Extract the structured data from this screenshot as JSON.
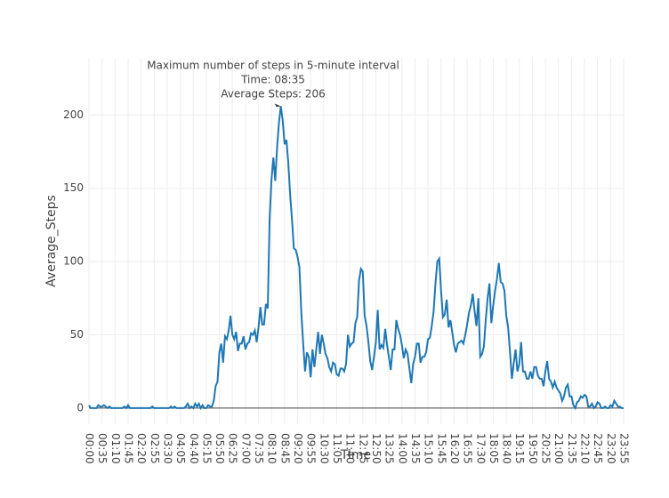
{
  "chart_data": {
    "type": "line",
    "annotation": [
      "Maximum number of steps in 5-minute interval",
      "Time: 08:35",
      "Average Steps: 206"
    ],
    "x_label": "Time",
    "y_label": "Average_Steps",
    "categories": [
      "00:00",
      null,
      null,
      null,
      null,
      null,
      null,
      "00:35",
      null,
      null,
      null,
      null,
      null,
      null,
      "01:10",
      null,
      null,
      null,
      null,
      null,
      null,
      "01:45",
      null,
      null,
      null,
      null,
      null,
      null,
      "02:20",
      null,
      null,
      null,
      null,
      null,
      null,
      "02:55",
      null,
      null,
      null,
      null,
      null,
      null,
      "03:30",
      null,
      null,
      null,
      null,
      null,
      null,
      "04:05",
      null,
      null,
      null,
      null,
      null,
      null,
      "04:40",
      null,
      null,
      null,
      null,
      null,
      null,
      "05:15",
      null,
      null,
      null,
      null,
      null,
      null,
      "05:50",
      null,
      null,
      null,
      null,
      null,
      null,
      "06:25",
      null,
      null,
      null,
      null,
      null,
      null,
      "07:00",
      null,
      null,
      null,
      null,
      null,
      null,
      "07:35",
      null,
      null,
      null,
      null,
      null,
      null,
      "08:10",
      null,
      null,
      null,
      null,
      null,
      null,
      "08:45",
      null,
      null,
      null,
      null,
      null,
      null,
      "09:20",
      null,
      null,
      null,
      null,
      null,
      null,
      "09:55",
      null,
      null,
      null,
      null,
      null,
      null,
      "10:30",
      null,
      null,
      null,
      null,
      null,
      null,
      "11:05",
      null,
      null,
      null,
      null,
      null,
      null,
      "11:40",
      null,
      null,
      null,
      null,
      null,
      null,
      "12:15",
      null,
      null,
      null,
      null,
      null,
      null,
      "12:50",
      null,
      null,
      null,
      null,
      null,
      null,
      "13:25",
      null,
      null,
      null,
      null,
      null,
      null,
      "14:00",
      null,
      null,
      null,
      null,
      null,
      null,
      "14:35",
      null,
      null,
      null,
      null,
      null,
      null,
      "15:10",
      null,
      null,
      null,
      null,
      null,
      null,
      "15:45",
      null,
      null,
      null,
      null,
      null,
      null,
      "16:20",
      null,
      null,
      null,
      null,
      null,
      null,
      "16:55",
      null,
      null,
      null,
      null,
      null,
      null,
      "17:30",
      null,
      null,
      null,
      null,
      null,
      null,
      "18:05",
      null,
      null,
      null,
      null,
      null,
      null,
      "18:40",
      null,
      null,
      null,
      null,
      null,
      null,
      "19:15",
      null,
      null,
      null,
      null,
      null,
      null,
      "19:50",
      null,
      null,
      null,
      null,
      null,
      null,
      "20:25",
      null,
      null,
      null,
      null,
      null,
      null,
      "21:00",
      null,
      null,
      null,
      null,
      null,
      null,
      "21:35",
      null,
      null,
      null,
      null,
      null,
      null,
      "22:10",
      null,
      null,
      null,
      null,
      null,
      null,
      "22:45",
      null,
      null,
      null,
      null,
      null,
      null,
      "23:20",
      null,
      null,
      null,
      null,
      null,
      null,
      "23:55"
    ],
    "series": [
      {
        "color": "#1f77b4",
        "values": [
          2,
          0,
          0,
          0,
          0,
          2,
          1,
          1,
          2,
          1,
          0,
          1,
          0,
          0,
          0,
          0,
          0,
          0,
          0,
          1,
          0,
          2,
          0,
          0,
          0,
          0,
          0,
          0,
          0,
          0,
          0,
          0,
          0,
          0,
          1,
          0,
          0,
          0,
          0,
          0,
          0,
          0,
          0,
          0,
          1,
          0,
          1,
          0,
          0,
          0,
          0,
          0,
          1,
          3,
          0,
          1,
          0,
          3,
          1,
          3,
          0,
          2,
          0,
          0,
          2,
          1,
          1,
          5,
          15,
          18,
          38,
          44,
          31,
          49,
          47,
          53,
          63,
          50,
          47,
          52,
          39,
          44,
          44,
          49,
          40,
          44,
          45,
          51,
          50,
          53,
          45,
          55,
          69,
          57,
          57,
          71,
          68,
          130,
          156,
          171,
          155,
          178,
          195,
          206,
          196,
          180,
          183,
          167,
          145,
          128,
          109,
          108,
          103,
          96,
          65,
          44,
          25,
          38,
          35,
          21,
          40,
          28,
          40,
          52,
          37,
          50,
          44,
          37,
          34,
          28,
          25,
          31,
          30,
          23,
          22,
          27,
          27,
          25,
          30,
          50,
          42,
          44,
          45,
          58,
          62,
          87,
          95,
          93,
          63,
          56,
          45,
          32,
          26,
          35,
          45,
          67,
          40,
          43,
          41,
          54,
          43,
          35,
          26,
          40,
          40,
          60,
          54,
          50,
          43,
          34,
          40,
          37,
          27,
          17,
          30,
          35,
          44,
          44,
          31,
          35,
          35,
          38,
          47,
          48,
          56,
          66,
          85,
          100,
          102,
          80,
          62,
          64,
          74,
          55,
          60,
          52,
          43,
          38,
          44,
          45,
          46,
          44,
          50,
          57,
          65,
          70,
          78,
          66,
          56,
          75,
          35,
          37,
          42,
          60,
          75,
          85,
          58,
          70,
          80,
          88,
          99,
          86,
          85,
          80,
          63,
          55,
          38,
          20,
          30,
          40,
          25,
          30,
          45,
          25,
          25,
          20,
          20,
          25,
          20,
          28,
          28,
          22,
          20,
          20,
          15,
          25,
          32,
          20,
          18,
          14,
          18,
          14,
          12,
          10,
          5,
          8,
          14,
          16,
          8,
          8,
          2,
          0,
          4,
          5,
          8,
          7,
          9,
          8,
          1,
          1,
          3,
          0,
          1,
          4,
          3,
          0,
          0,
          1,
          0,
          0,
          2,
          1,
          5,
          3,
          1,
          1,
          0,
          0
        ]
      }
    ],
    "ylim": [
      -11,
      239
    ],
    "yticks": [
      0,
      50,
      100,
      150,
      200
    ],
    "grid": true
  }
}
